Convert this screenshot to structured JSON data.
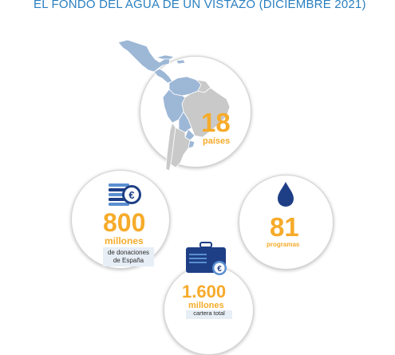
{
  "title": "EL FONDO DEL AGUA DE UN VISTAZO (DICIEMBRE 2021)",
  "colors": {
    "title_blue": "#2a7fc0",
    "highlight_orange": "#f6ab2a",
    "map_blue": "#9db7d6",
    "map_grey": "#c9c9c9",
    "icon_navy": "#1e3f86",
    "icon_blue": "#5b8fd0",
    "note_box": "#e7eef6"
  },
  "stats": {
    "countries": {
      "number": "18",
      "label": "países",
      "icon": "latin-america-map"
    },
    "donations": {
      "number": "800",
      "unit": "millones",
      "note_line1": "de donaciones",
      "note_line2": "de España",
      "icon": "euro-coins-stack"
    },
    "programs": {
      "number": "81",
      "label": "programas",
      "icon": "water-drop"
    },
    "portfolio": {
      "number": "1.600",
      "unit": "millones",
      "note": "cartera total",
      "icon": "briefcase-euro"
    }
  }
}
